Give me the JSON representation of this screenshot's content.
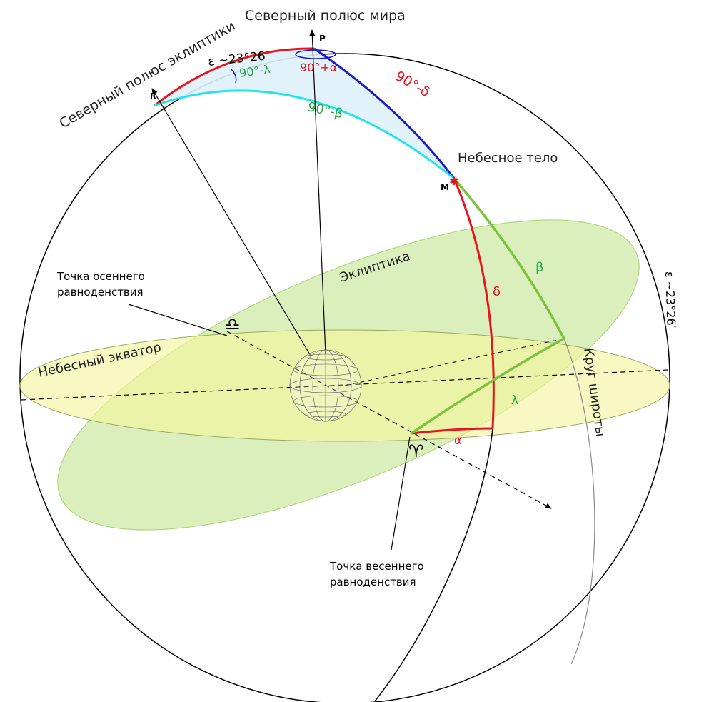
{
  "labels": {
    "north_pole_world": "Северный полюс мира",
    "north_pole_ecliptic": "Северный полюс эклиптики",
    "celestial_body": "Небесное тело",
    "ecliptic": "Эклиптика",
    "celestial_equator": "Небесный экватор",
    "latitude_circle": "Круг широты",
    "autumn_equinox_1": "Точка осеннего",
    "autumn_equinox_2": "равноденствия",
    "spring_equinox_1": "Точка весеннего",
    "spring_equinox_2": "равноденствия",
    "point_p": "P",
    "point_r": "R",
    "point_m": "M",
    "epsilon_top": "ε ~23°26′",
    "epsilon_right": "ε ~23°26′",
    "ninety_minus_lambda": "90°-λ",
    "ninety_plus_alpha": "90°+α",
    "ninety_minus_delta": "90°-δ",
    "ninety_minus_beta": "90°-β",
    "delta": "δ",
    "beta": "β",
    "lambda": "λ",
    "alpha": "α",
    "libra_symbol": "♎",
    "aries_symbol": "♈"
  },
  "colors": {
    "red": "#e8141c",
    "blue": "#1a1acc",
    "cyan": "#22e4ee",
    "green_arc": "#7cc23c",
    "green_text": "#2aa84a",
    "ecliptic_fill": "#cfe9a6",
    "equator_fill": "#f4f59a",
    "triangle_fill": "#dff1fb"
  }
}
